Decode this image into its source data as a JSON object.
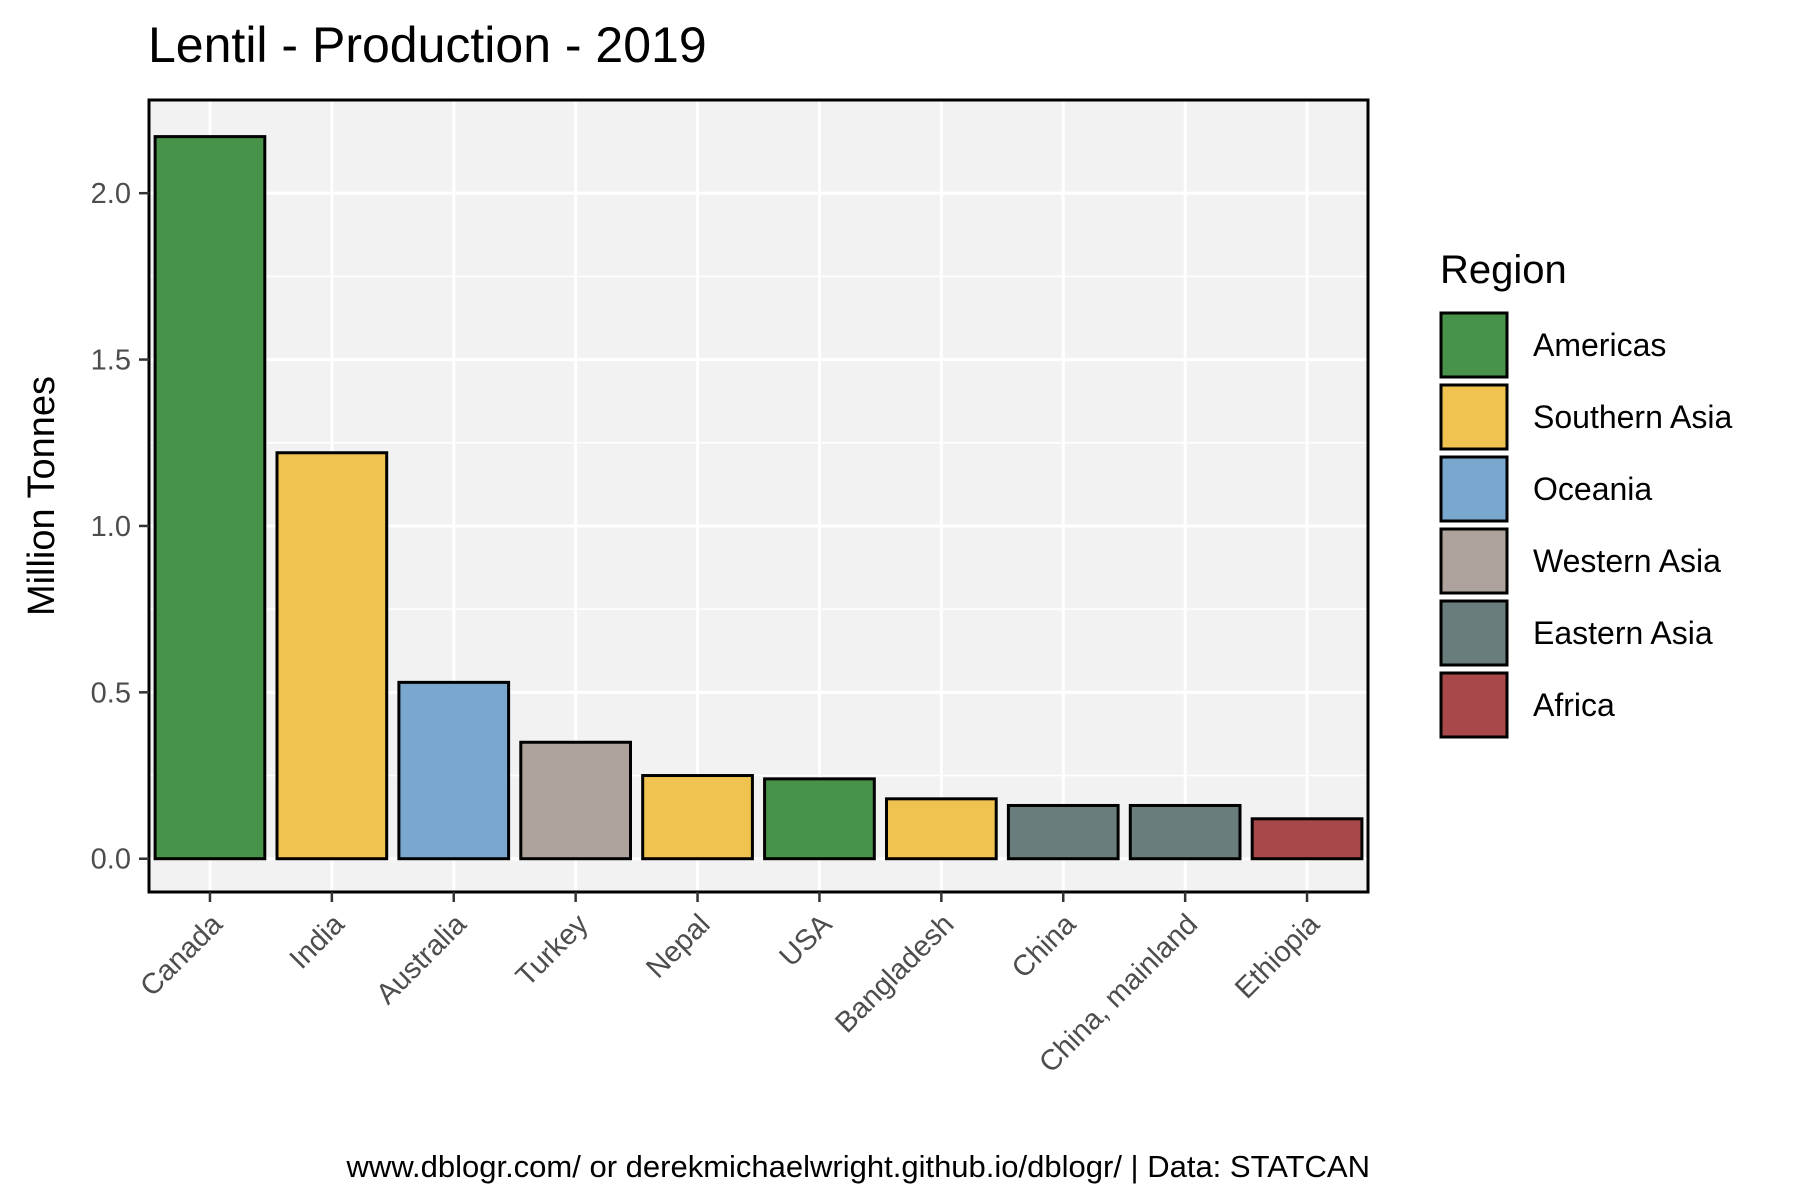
{
  "chart_data": {
    "type": "bar",
    "title": "Lentil - Production - 2019",
    "xlabel": "",
    "ylabel": "Million Tonnes",
    "ylim": [
      -0.1,
      2.28
    ],
    "yticks": [
      "0.0",
      "0.5",
      "1.0",
      "1.5",
      "2.0"
    ],
    "categories": [
      "Canada",
      "India",
      "Australia",
      "Turkey",
      "Nepal",
      "USA",
      "Bangladesh",
      "China",
      "China, mainland",
      "Ethiopia"
    ],
    "values": [
      2.17,
      1.22,
      0.53,
      0.35,
      0.25,
      0.24,
      0.18,
      0.16,
      0.16,
      0.12
    ],
    "regions": [
      "Americas",
      "Southern Asia",
      "Oceania",
      "Western Asia",
      "Southern Asia",
      "Americas",
      "Southern Asia",
      "Eastern Asia",
      "Eastern Asia",
      "Africa"
    ],
    "grid": true,
    "panel_background": "#f2f2f2",
    "legend": {
      "title": "Region",
      "placement": "right",
      "items": [
        {
          "label": "Americas",
          "color": "#49924a"
        },
        {
          "label": "Southern Asia",
          "color": "#f0c350"
        },
        {
          "label": "Oceania",
          "color": "#79a7cd"
        },
        {
          "label": "Western Asia",
          "color": "#ada39c"
        },
        {
          "label": "Eastern Asia",
          "color": "#6a7d7d"
        },
        {
          "label": "Africa",
          "color": "#a9484a"
        }
      ]
    },
    "caption": "www.dblogr.com/ or derekmichaelwright.github.io/dblogr/ | Data: STATCAN"
  }
}
